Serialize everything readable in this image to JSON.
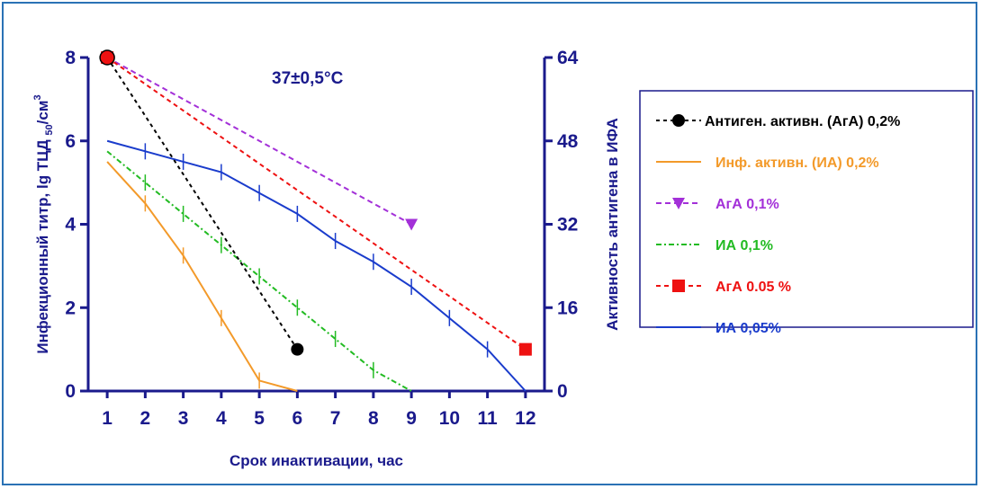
{
  "chart_data": {
    "type": "line",
    "annotation": "37±0,5°C",
    "xlabel": "Срок инактивации, час",
    "ylabel_left": {
      "main": "Инфекционный титр, lg ТЦД ",
      "sub": "50",
      "after": "/см",
      "sup": "3"
    },
    "ylabel_right": "Активность антигена в ИФА",
    "x_ticks": [
      "1",
      "2",
      "3",
      "4",
      "5",
      "6",
      "7",
      "8",
      "9",
      "10",
      "11",
      "12"
    ],
    "xlim": [
      0.5,
      12.5
    ],
    "y_left_ticks": [
      "0",
      "2",
      "4",
      "6",
      "8"
    ],
    "y_left_lim": [
      0,
      8
    ],
    "y_right_ticks": [
      "0",
      "16",
      "32",
      "48",
      "64"
    ],
    "y_right_lim": [
      0,
      64
    ],
    "grid": false,
    "legend_position": "right",
    "series": [
      {
        "name": "Антиген. активн. (АгА) 0,2%",
        "axis": "right",
        "color": "#000000",
        "dash": "4,4",
        "marker": "circle",
        "legend_color": "#000000",
        "x": [
          1,
          6
        ],
        "y": [
          64,
          8
        ]
      },
      {
        "name": "Инф. активн. (ИА) 0,2%",
        "axis": "left",
        "color": "#f39a2a",
        "dash": "",
        "marker": "tick",
        "legend_color": "#f39a2a",
        "x": [
          1,
          2,
          3,
          4,
          5,
          6
        ],
        "y": [
          5.5,
          4.5,
          3.25,
          1.75,
          0.25,
          0
        ]
      },
      {
        "name": "АгА 0,1%",
        "axis": "right",
        "color": "#a330d8",
        "dash": "6,4",
        "marker": "triangle",
        "legend_color": "#a330d8",
        "x": [
          1,
          9
        ],
        "y": [
          64,
          32
        ]
      },
      {
        "name": "ИА 0,1%",
        "axis": "left",
        "color": "#22bb22",
        "dash": "6,3,2,3",
        "marker": "tick",
        "legend_color": "#22bb22",
        "x": [
          1,
          2,
          3,
          4,
          5,
          6,
          7,
          8,
          9
        ],
        "y": [
          5.75,
          5.0,
          4.25,
          3.5,
          2.75,
          2.0,
          1.25,
          0.5,
          0
        ]
      },
      {
        "name": "АгА 0.05 %",
        "axis": "right",
        "color": "#ee1111",
        "dash": "5,4",
        "marker": "square",
        "legend_color": "#ee1111",
        "x": [
          1,
          12
        ],
        "y": [
          64,
          8
        ]
      },
      {
        "name": "ИА 0,05%",
        "axis": "left",
        "color": "#1a3ccc",
        "dash": "",
        "marker": "tick",
        "legend_color": "#1a3ccc",
        "x": [
          1,
          2,
          3,
          4,
          5,
          6,
          7,
          8,
          9,
          10,
          11,
          12
        ],
        "y": [
          6.0,
          5.75,
          5.5,
          5.25,
          4.75,
          4.25,
          3.6,
          3.1,
          2.5,
          1.75,
          1.0,
          0
        ]
      }
    ]
  },
  "colors": {
    "axis": "#1a1a8c",
    "frame": "#2a72b5"
  }
}
